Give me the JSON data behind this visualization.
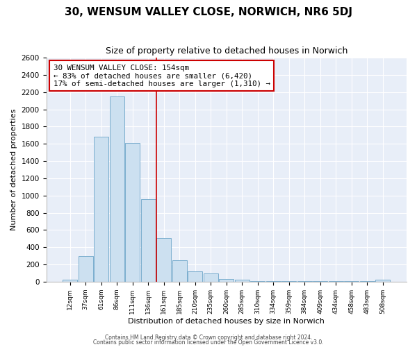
{
  "title": "30, WENSUM VALLEY CLOSE, NORWICH, NR6 5DJ",
  "subtitle": "Size of property relative to detached houses in Norwich",
  "xlabel": "Distribution of detached houses by size in Norwich",
  "ylabel": "Number of detached properties",
  "bar_labels": [
    "12sqm",
    "37sqm",
    "61sqm",
    "86sqm",
    "111sqm",
    "136sqm",
    "161sqm",
    "185sqm",
    "210sqm",
    "235sqm",
    "260sqm",
    "285sqm",
    "310sqm",
    "334sqm",
    "359sqm",
    "384sqm",
    "409sqm",
    "434sqm",
    "458sqm",
    "483sqm",
    "508sqm"
  ],
  "bar_values": [
    20,
    300,
    1680,
    2150,
    1610,
    960,
    510,
    245,
    120,
    95,
    30,
    20,
    10,
    5,
    5,
    5,
    5,
    5,
    5,
    5,
    20
  ],
  "bar_color": "#cce0f0",
  "bar_edge_color": "#7baece",
  "vline_color": "#cc0000",
  "annotation_title": "30 WENSUM VALLEY CLOSE: 154sqm",
  "annotation_line1": "← 83% of detached houses are smaller (6,420)",
  "annotation_line2": "17% of semi-detached houses are larger (1,310) →",
  "annotation_box_color": "white",
  "annotation_box_edge": "#cc0000",
  "ylim": [
    0,
    2600
  ],
  "yticks": [
    0,
    200,
    400,
    600,
    800,
    1000,
    1200,
    1400,
    1600,
    1800,
    2000,
    2200,
    2400,
    2600
  ],
  "footer1": "Contains HM Land Registry data © Crown copyright and database right 2024.",
  "footer2": "Contains public sector information licensed under the Open Government Licence v3.0.",
  "bg_color": "#ffffff",
  "plot_bg_color": "#e8eef8",
  "grid_color": "#ffffff",
  "title_fontsize": 11,
  "subtitle_fontsize": 9
}
